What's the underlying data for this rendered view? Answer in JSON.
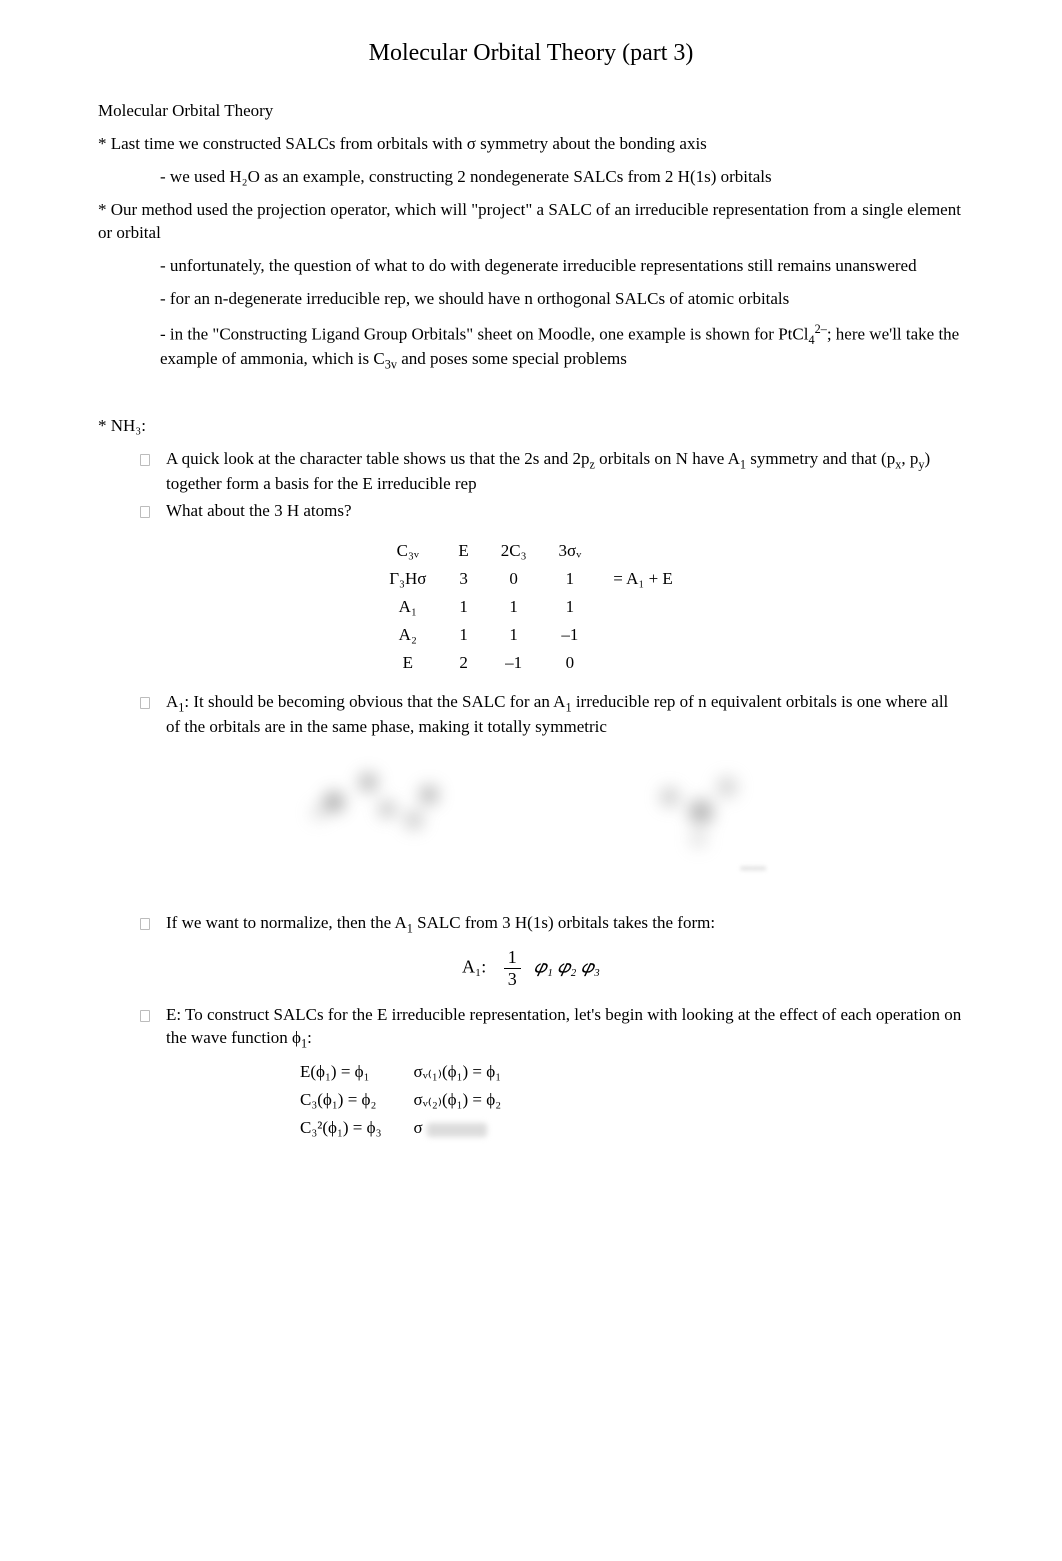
{
  "title": "Molecular Orbital Theory (part 3)",
  "heading": "Molecular Orbital Theory",
  "p1": "* Last time we constructed SALCs from orbitals with σ symmetry about the bonding axis",
  "p1a": "- we used H₂O as an example, constructing 2 nondegenerate SALCs from 2 H(1s) orbitals",
  "p2": "* Our method used the projection operator, which will \"project\" a SALC of an irreducible representation from a single element or orbital",
  "p2a": "- unfortunately, the question of what to do with degenerate irreducible representations still remains unanswered",
  "p2b": "- for an n-degenerate irreducible rep, we should have n orthogonal SALCs of atomic orbitals",
  "p2c_pre": "- in the \"Constructing Ligand Group Orbitals\" sheet on Moodle, one example is shown for PtCl",
  "p2c_post": "; here we'll take the example of ammonia, which is C",
  "p2c_tail": " and poses some special problems",
  "nh3_label": "* NH₃:",
  "b1_pre": "A quick look at the character table shows us that the 2s and 2p",
  "b1_mid": " orbitals on N have A",
  "b1_post": " symmetry and that (p",
  "b1_tail": ") together form a basis for the E irreducible rep",
  "b2": "What about the 3 H atoms?",
  "char_table": {
    "headers": [
      "C₃ᵥ",
      "E",
      "2C₃",
      "3σᵥ",
      ""
    ],
    "rows": [
      [
        "Γ₃Hσ",
        "3",
        "0",
        "1",
        "= A₁ + E"
      ],
      [
        "A₁",
        "1",
        "1",
        "1",
        ""
      ],
      [
        "A₂",
        "1",
        "1",
        "–1",
        ""
      ],
      [
        "E",
        "2",
        "–1",
        "0",
        ""
      ]
    ]
  },
  "b3_pre": "A",
  "b3_mid": ": It should be becoming obvious that the SALC for an A",
  "b3_post": " irreducible rep of n equivalent orbitals is one where all of the orbitals are in the same phase, making it totally symmetric",
  "b4_pre": "If we want to normalize, then the A",
  "b4_post": " SALC from 3 H(1s) orbitals takes the form:",
  "eqn_label": "A₁:",
  "eqn_frac_num": "1",
  "eqn_frac_den": "3",
  "eqn_body": "𝜑₁  𝜑₂  𝜑₃",
  "b5_pre": "E: To construct SALCs for the E irreducible representation, let's begin with looking at the effect of each operation on the wave function ",
  "b5_post": ":",
  "ops": {
    "r1c1": "E(ϕ₁) = ϕ₁",
    "r1c2": "σᵥ₍₁₎(ϕ₁) = ϕ₁",
    "r2c1": "C₃(ϕ₁) = ϕ₂",
    "r2c2": "σᵥ₍₂₎(ϕ₁) = ϕ₂",
    "r3c1": "C₃²(ϕ₁) = ϕ₃",
    "r3c2": "σ"
  }
}
